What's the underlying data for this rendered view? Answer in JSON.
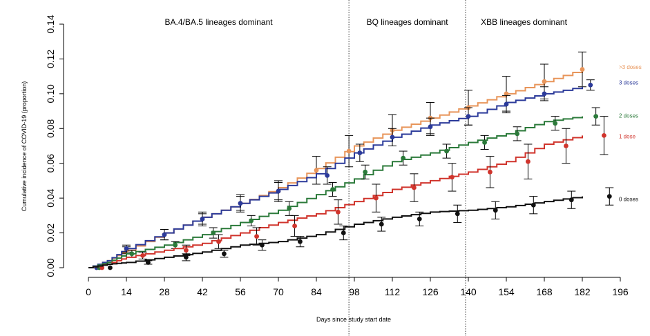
{
  "chart_data": {
    "type": "line",
    "title": "",
    "xlabel": "Days since study start date",
    "ylabel": "Cumulative incidence of COVID-19 (proportion)",
    "xlim": [
      0,
      196
    ],
    "ylim": [
      0,
      0.14
    ],
    "x_ticks": [
      0,
      14,
      28,
      42,
      56,
      70,
      84,
      98,
      112,
      126,
      140,
      154,
      168,
      182,
      196
    ],
    "y_ticks": [
      "0.00",
      "0.02",
      "0.04",
      "0.06",
      "0.08",
      "0.10",
      "0.12",
      "0.14"
    ],
    "grid": false,
    "legend": "right",
    "periods": [
      {
        "label": "BA.4/BA.5 lineages dominant",
        "start": 0,
        "end": 96
      },
      {
        "label": "BQ lineages dominant",
        "start": 96,
        "end": 139
      },
      {
        "label": "XBB lineages dominant",
        "start": 139,
        "end": 182
      }
    ],
    "period_boundaries": [
      96,
      139
    ],
    "series": [
      {
        "name": ">3 doses",
        "color": "#E8955A",
        "label_y": 0.1155,
        "curve": [
          [
            0,
            0
          ],
          [
            7,
            0.004
          ],
          [
            14,
            0.01
          ],
          [
            28,
            0.02
          ],
          [
            42,
            0.029
          ],
          [
            56,
            0.037
          ],
          [
            70,
            0.046
          ],
          [
            84,
            0.057
          ],
          [
            98,
            0.07
          ],
          [
            112,
            0.079
          ],
          [
            126,
            0.086
          ],
          [
            140,
            0.093
          ],
          [
            154,
            0.1
          ],
          [
            168,
            0.107
          ],
          [
            182,
            0.114
          ]
        ],
        "points": [
          [
            3,
            0
          ],
          [
            14,
            0.01
          ],
          [
            28,
            0.019
          ],
          [
            42,
            0.028
          ],
          [
            56,
            0.037
          ],
          [
            70,
            0.044
          ],
          [
            84,
            0.056
          ],
          [
            96,
            0.067
          ],
          [
            112,
            0.079
          ],
          [
            126,
            0.086
          ],
          [
            140,
            0.092
          ],
          [
            154,
            0.1
          ],
          [
            168,
            0.107
          ],
          [
            182,
            0.114
          ]
        ],
        "errors": [
          [
            0,
            0
          ],
          [
            0.002,
            0.002
          ],
          [
            0.003,
            0.003
          ],
          [
            0.004,
            0.004
          ],
          [
            0.005,
            0.005
          ],
          [
            0.006,
            0.006
          ],
          [
            0.008,
            0.008
          ],
          [
            0.009,
            0.009
          ],
          [
            0.009,
            0.009
          ],
          [
            0.009,
            0.009
          ],
          [
            0.01,
            0.01
          ],
          [
            0.01,
            0.01
          ],
          [
            0.01,
            0.01
          ],
          [
            0.01,
            0.01
          ]
        ]
      },
      {
        "name": "3 doses",
        "color": "#2B3A9A",
        "label_y": 0.1065,
        "curve": [
          [
            0,
            0
          ],
          [
            7,
            0.004
          ],
          [
            14,
            0.011
          ],
          [
            28,
            0.02
          ],
          [
            42,
            0.029
          ],
          [
            56,
            0.037
          ],
          [
            70,
            0.045
          ],
          [
            84,
            0.054
          ],
          [
            98,
            0.066
          ],
          [
            112,
            0.075
          ],
          [
            126,
            0.082
          ],
          [
            140,
            0.087
          ],
          [
            154,
            0.095
          ],
          [
            168,
            0.1
          ],
          [
            182,
            0.104
          ]
        ],
        "points": [
          [
            3,
            0
          ],
          [
            14,
            0.011
          ],
          [
            28,
            0.019
          ],
          [
            42,
            0.028
          ],
          [
            56,
            0.037
          ],
          [
            70,
            0.044
          ],
          [
            88,
            0.053
          ],
          [
            100,
            0.066
          ],
          [
            112,
            0.075
          ],
          [
            126,
            0.081
          ],
          [
            140,
            0.087
          ],
          [
            154,
            0.094
          ],
          [
            168,
            0.1
          ],
          [
            185,
            0.105
          ]
        ],
        "errors": [
          [
            0,
            0
          ],
          [
            0.002,
            0.002
          ],
          [
            0.003,
            0.003
          ],
          [
            0.003,
            0.003
          ],
          [
            0.004,
            0.004
          ],
          [
            0.005,
            0.005
          ],
          [
            0.005,
            0.005
          ],
          [
            0.005,
            0.005
          ],
          [
            0.005,
            0.005
          ],
          [
            0.005,
            0.005
          ],
          [
            0.005,
            0.005
          ],
          [
            0.005,
            0.005
          ],
          [
            0.004,
            0.004
          ],
          [
            0.003,
            0.003
          ]
        ]
      },
      {
        "name": "2 doses",
        "color": "#2B7A3A",
        "label_y": 0.0875,
        "curve": [
          [
            0,
            0
          ],
          [
            7,
            0.003
          ],
          [
            14,
            0.008
          ],
          [
            28,
            0.013
          ],
          [
            42,
            0.019
          ],
          [
            56,
            0.026
          ],
          [
            70,
            0.033
          ],
          [
            84,
            0.042
          ],
          [
            98,
            0.051
          ],
          [
            112,
            0.061
          ],
          [
            126,
            0.066
          ],
          [
            140,
            0.072
          ],
          [
            154,
            0.077
          ],
          [
            168,
            0.084
          ],
          [
            182,
            0.087
          ]
        ],
        "points": [
          [
            4,
            0
          ],
          [
            16,
            0.008
          ],
          [
            32,
            0.013
          ],
          [
            46,
            0.02
          ],
          [
            60,
            0.027
          ],
          [
            74,
            0.034
          ],
          [
            90,
            0.045
          ],
          [
            102,
            0.055
          ],
          [
            116,
            0.063
          ],
          [
            132,
            0.067
          ],
          [
            146,
            0.072
          ],
          [
            158,
            0.077
          ],
          [
            172,
            0.083
          ],
          [
            187,
            0.087
          ]
        ],
        "errors": [
          [
            0,
            0
          ],
          [
            0.002,
            0.002
          ],
          [
            0.002,
            0.002
          ],
          [
            0.003,
            0.003
          ],
          [
            0.003,
            0.003
          ],
          [
            0.004,
            0.004
          ],
          [
            0.004,
            0.004
          ],
          [
            0.004,
            0.004
          ],
          [
            0.004,
            0.004
          ],
          [
            0.004,
            0.004
          ],
          [
            0.004,
            0.004
          ],
          [
            0.004,
            0.004
          ],
          [
            0.004,
            0.004
          ],
          [
            0.005,
            0.005
          ]
        ]
      },
      {
        "name": "1 dose",
        "color": "#D0342C",
        "label_y": 0.0755,
        "curve": [
          [
            0,
            0
          ],
          [
            7,
            0.002
          ],
          [
            14,
            0.006
          ],
          [
            28,
            0.01
          ],
          [
            42,
            0.014
          ],
          [
            56,
            0.02
          ],
          [
            70,
            0.026
          ],
          [
            84,
            0.031
          ],
          [
            98,
            0.038
          ],
          [
            112,
            0.045
          ],
          [
            126,
            0.05
          ],
          [
            140,
            0.055
          ],
          [
            154,
            0.061
          ],
          [
            168,
            0.071
          ],
          [
            182,
            0.076
          ]
        ],
        "points": [
          [
            5,
            0
          ],
          [
            20,
            0.007
          ],
          [
            36,
            0.01
          ],
          [
            48,
            0.015
          ],
          [
            62,
            0.018
          ],
          [
            76,
            0.024
          ],
          [
            92,
            0.032
          ],
          [
            106,
            0.04
          ],
          [
            120,
            0.046
          ],
          [
            134,
            0.052
          ],
          [
            148,
            0.055
          ],
          [
            162,
            0.061
          ],
          [
            176,
            0.07
          ],
          [
            190,
            0.076
          ]
        ],
        "errors": [
          [
            0,
            0
          ],
          [
            0.002,
            0.002
          ],
          [
            0.003,
            0.003
          ],
          [
            0.004,
            0.004
          ],
          [
            0.005,
            0.005
          ],
          [
            0.006,
            0.006
          ],
          [
            0.007,
            0.007
          ],
          [
            0.008,
            0.008
          ],
          [
            0.008,
            0.008
          ],
          [
            0.008,
            0.008
          ],
          [
            0.009,
            0.009
          ],
          [
            0.01,
            0.01
          ],
          [
            0.01,
            0.01
          ],
          [
            0.011,
            0.011
          ]
        ]
      },
      {
        "name": "0 doses",
        "color": "#111111",
        "label_y": 0.0395,
        "curve": [
          [
            0,
            0
          ],
          [
            7,
            0.002
          ],
          [
            14,
            0.003
          ],
          [
            28,
            0.006
          ],
          [
            42,
            0.009
          ],
          [
            56,
            0.013
          ],
          [
            70,
            0.015
          ],
          [
            84,
            0.019
          ],
          [
            98,
            0.025
          ],
          [
            112,
            0.029
          ],
          [
            126,
            0.032
          ],
          [
            140,
            0.033
          ],
          [
            154,
            0.035
          ],
          [
            168,
            0.038
          ],
          [
            182,
            0.041
          ]
        ],
        "points": [
          [
            8,
            0
          ],
          [
            22,
            0.003
          ],
          [
            36,
            0.006
          ],
          [
            50,
            0.008
          ],
          [
            64,
            0.013
          ],
          [
            78,
            0.015
          ],
          [
            94,
            0.02
          ],
          [
            108,
            0.025
          ],
          [
            122,
            0.028
          ],
          [
            136,
            0.031
          ],
          [
            150,
            0.033
          ],
          [
            164,
            0.036
          ],
          [
            178,
            0.039
          ],
          [
            192,
            0.041
          ]
        ],
        "errors": [
          [
            0,
            0
          ],
          [
            0.001,
            0.001
          ],
          [
            0.002,
            0.002
          ],
          [
            0.002,
            0.002
          ],
          [
            0.003,
            0.003
          ],
          [
            0.003,
            0.003
          ],
          [
            0.004,
            0.004
          ],
          [
            0.004,
            0.004
          ],
          [
            0.004,
            0.004
          ],
          [
            0.005,
            0.005
          ],
          [
            0.005,
            0.005
          ],
          [
            0.005,
            0.005
          ],
          [
            0.005,
            0.005
          ],
          [
            0.005,
            0.005
          ]
        ]
      }
    ]
  }
}
